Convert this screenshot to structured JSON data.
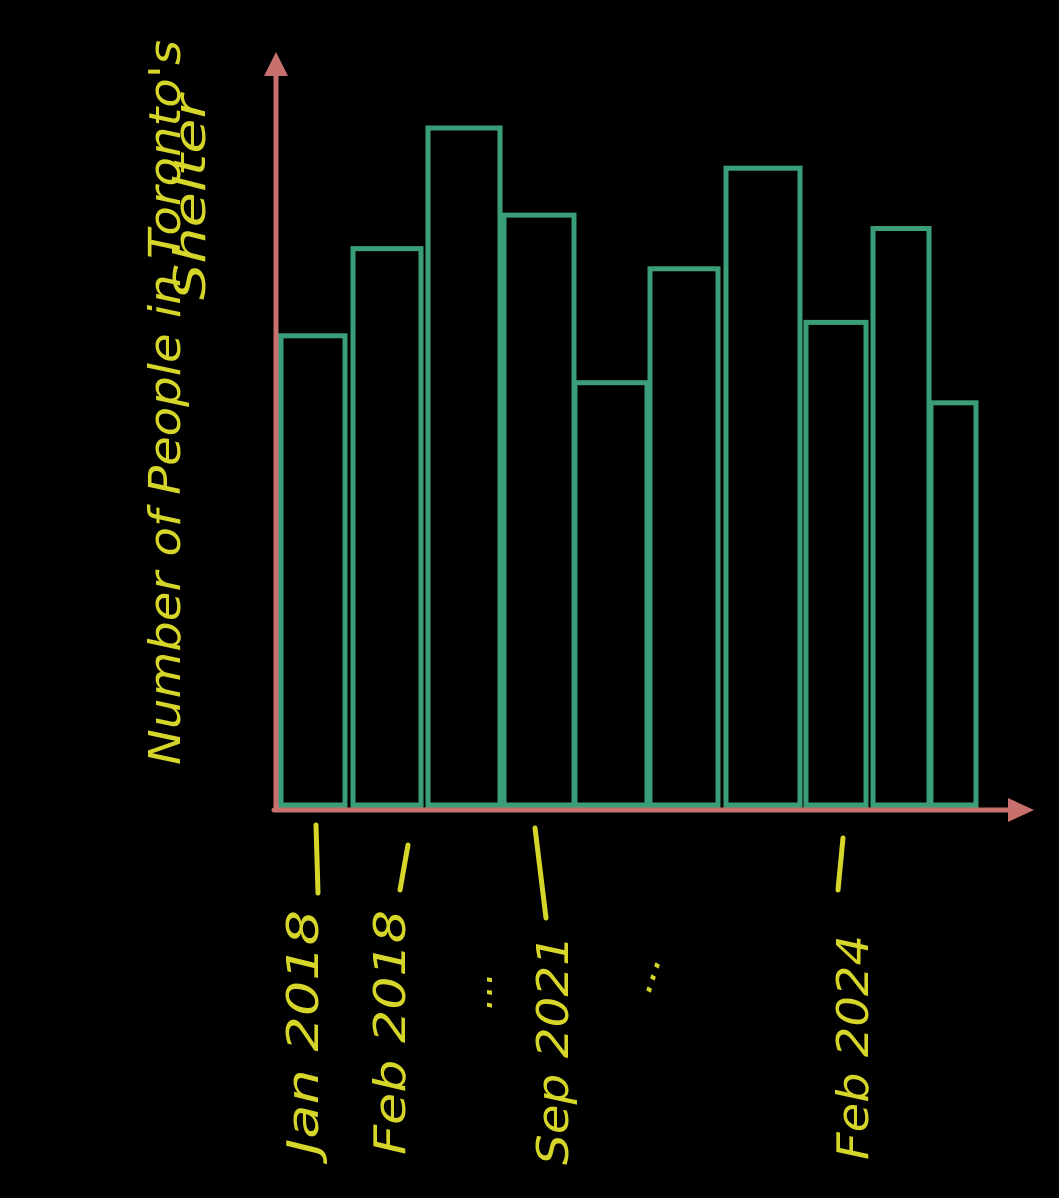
{
  "chart_data": {
    "type": "bar",
    "title": "",
    "ylabel_line1": "Number of People in Toronto's",
    "ylabel_line2": "Shelter",
    "xlabel": "",
    "categories": [
      "Jan 2018",
      "Feb 2018",
      "",
      "Sep 2021",
      "",
      "",
      "",
      "Feb 2024",
      "",
      ""
    ],
    "x_tick_labels": [
      "Jan 2018",
      "Feb 2018",
      "Sep 2021",
      "Feb 2024"
    ],
    "ellipses": [
      "...",
      "..."
    ],
    "values": [
      70,
      83,
      101,
      88,
      63,
      80,
      95,
      72,
      86,
      60
    ],
    "ylim": [
      0,
      110
    ],
    "grid": false,
    "legend": "none",
    "colors": {
      "bar_outline": "#3a9e78",
      "bar_fill": "#000000",
      "axis": "#c8706e",
      "text": "#d6d62a",
      "background": "#000000"
    }
  }
}
